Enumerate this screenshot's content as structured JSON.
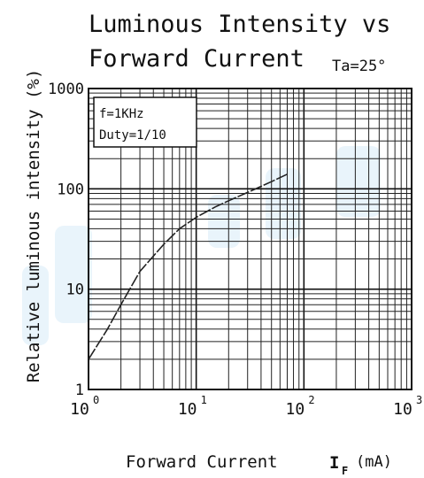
{
  "chart_data": {
    "type": "line",
    "title": "Luminous Intensity vs",
    "subtitle": "Forward Current",
    "condition": "Ta=25°",
    "xlabel": "Forward Current",
    "xunit_main": "I",
    "xunit_sub": "F",
    "xunit_tail": "(mA)",
    "ylabel": "Relative luminous intensity (%)",
    "xscale": "log",
    "yscale": "log",
    "xlim": [
      1,
      1000
    ],
    "ylim": [
      1,
      1000
    ],
    "grid": true,
    "legend_lines": [
      "f=1KHz",
      "Duty=1/10"
    ],
    "legend_placement": "top-left",
    "x_ticks": [
      {
        "value": 1,
        "base": "10",
        "exp": "0"
      },
      {
        "value": 10,
        "base": "10",
        "exp": "1"
      },
      {
        "value": 100,
        "base": "10",
        "exp": "2"
      },
      {
        "value": 1000,
        "base": "10",
        "exp": "3"
      }
    ],
    "y_ticks": [
      {
        "value": 1,
        "label": "1"
      },
      {
        "value": 10,
        "label": "10"
      },
      {
        "value": 100,
        "label": "100"
      },
      {
        "value": 1000,
        "label": "1000"
      }
    ],
    "series": [
      {
        "x": [
          1,
          1.5,
          2,
          3,
          5,
          7,
          10,
          15,
          20,
          30,
          50,
          70
        ],
        "y": [
          2,
          4,
          7,
          15,
          28,
          40,
          52,
          66,
          76,
          92,
          118,
          140
        ],
        "color": "#222222"
      }
    ],
    "watermark_color": "#bfe0f4"
  }
}
